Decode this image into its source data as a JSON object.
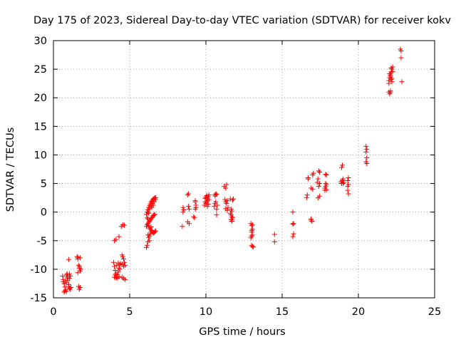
{
  "chart_data": {
    "type": "scatter",
    "title": "Day 175 of 2023, Sidereal Day-to-day VTEC variation (SDTVAR) for receiver kokv",
    "xlabel": "GPS time / hours",
    "ylabel": "SDTVAR / TECUs",
    "xlim": [
      0,
      25
    ],
    "ylim": [
      -15,
      30
    ],
    "xticks": [
      0,
      5,
      10,
      15,
      20,
      25
    ],
    "yticks": [
      -15,
      -10,
      -5,
      0,
      5,
      10,
      15,
      20,
      25,
      30
    ],
    "xtick_labels": [
      "0",
      "5",
      "10",
      "15",
      "20",
      "25"
    ],
    "ytick_labels": [
      "-15",
      "-10",
      "-5",
      "0",
      "5",
      "10",
      "15",
      "20",
      "25",
      "30"
    ],
    "grid": true,
    "marker": "+",
    "color": "#ff0000",
    "series": [
      {
        "name": "SDTVAR",
        "points": [
          [
            0.6,
            -11.2
          ],
          [
            0.65,
            -11.8
          ],
          [
            0.7,
            -12.5
          ],
          [
            0.75,
            -13.1
          ],
          [
            0.8,
            -13.6
          ],
          [
            0.85,
            -11.0
          ],
          [
            0.9,
            -11.5
          ],
          [
            0.95,
            -12.0
          ],
          [
            1.0,
            -12.7
          ],
          [
            1.05,
            -13.3
          ],
          [
            0.7,
            -14.0
          ],
          [
            0.75,
            -13.8
          ],
          [
            0.8,
            -12.0
          ],
          [
            0.85,
            -12.4
          ],
          [
            0.9,
            -10.8
          ],
          [
            0.95,
            -11.2
          ],
          [
            1.0,
            -13.0
          ],
          [
            1.05,
            -11.6
          ],
          [
            0.65,
            -12.2
          ],
          [
            0.85,
            -13.9
          ],
          [
            1.0,
            -8.3
          ],
          [
            1.05,
            -10.8
          ],
          [
            1.1,
            -11.2
          ],
          [
            1.15,
            -13.2
          ],
          [
            1.1,
            -13.5
          ],
          [
            1.55,
            -7.8
          ],
          [
            1.6,
            -8.2
          ],
          [
            1.65,
            -9.3
          ],
          [
            1.7,
            -9.8
          ],
          [
            1.75,
            -10.3
          ],
          [
            1.6,
            -10.6
          ],
          [
            1.65,
            -13.0
          ],
          [
            1.7,
            -13.5
          ],
          [
            1.75,
            -13.2
          ],
          [
            1.6,
            -7.9
          ],
          [
            1.7,
            -9.5
          ],
          [
            1.8,
            -10.0
          ],
          [
            1.75,
            -8.0
          ],
          [
            4.0,
            -5.0
          ],
          [
            4.1,
            -4.8
          ],
          [
            4.3,
            -4.3
          ],
          [
            4.45,
            -2.5
          ],
          [
            4.55,
            -2.2
          ],
          [
            4.65,
            -2.3
          ],
          [
            3.95,
            -8.8
          ],
          [
            4.0,
            -9.5
          ],
          [
            4.05,
            -10.2
          ],
          [
            4.1,
            -10.8
          ],
          [
            4.15,
            -11.3
          ],
          [
            4.2,
            -11.0
          ],
          [
            4.25,
            -10.5
          ],
          [
            4.3,
            -9.8
          ],
          [
            4.35,
            -9.2
          ],
          [
            4.4,
            -9.0
          ],
          [
            4.0,
            -11.4
          ],
          [
            4.1,
            -11.5
          ],
          [
            4.2,
            -11.6
          ],
          [
            4.3,
            -11.3
          ],
          [
            4.15,
            -9.3
          ],
          [
            4.25,
            -8.9
          ],
          [
            4.05,
            -11.0
          ],
          [
            4.35,
            -10.0
          ],
          [
            4.5,
            -7.5
          ],
          [
            4.55,
            -7.8
          ],
          [
            4.6,
            -8.2
          ],
          [
            4.65,
            -8.8
          ],
          [
            4.7,
            -9.3
          ],
          [
            4.5,
            -9.1
          ],
          [
            4.6,
            -9.5
          ],
          [
            4.5,
            -11.4
          ],
          [
            4.6,
            -11.6
          ],
          [
            4.7,
            -11.8
          ],
          [
            6.1,
            -6.2
          ],
          [
            6.15,
            -5.8
          ],
          [
            6.2,
            -5.2
          ],
          [
            6.25,
            -4.5
          ],
          [
            6.3,
            -4.2
          ],
          [
            6.35,
            -3.8
          ],
          [
            6.4,
            -3.5
          ],
          [
            6.45,
            -3.2
          ],
          [
            6.5,
            -3.5
          ],
          [
            6.55,
            -3.7
          ],
          [
            6.6,
            -3.6
          ],
          [
            6.65,
            -3.4
          ],
          [
            6.7,
            -3.3
          ],
          [
            6.1,
            -2.5
          ],
          [
            6.15,
            -2.2
          ],
          [
            6.2,
            -2.0
          ],
          [
            6.25,
            -1.8
          ],
          [
            6.3,
            -1.6
          ],
          [
            6.35,
            -1.4
          ],
          [
            6.4,
            -1.2
          ],
          [
            6.45,
            -1.0
          ],
          [
            6.5,
            -0.8
          ],
          [
            6.55,
            -0.6
          ],
          [
            6.6,
            -0.5
          ],
          [
            6.65,
            -0.4
          ],
          [
            6.1,
            -0.4
          ],
          [
            6.15,
            0.0
          ],
          [
            6.2,
            0.4
          ],
          [
            6.25,
            0.8
          ],
          [
            6.3,
            1.1
          ],
          [
            6.35,
            1.4
          ],
          [
            6.4,
            1.7
          ],
          [
            6.45,
            1.9
          ],
          [
            6.5,
            2.1
          ],
          [
            6.55,
            2.3
          ],
          [
            6.6,
            2.4
          ],
          [
            6.65,
            2.5
          ],
          [
            6.7,
            2.5
          ],
          [
            6.15,
            -1.0
          ],
          [
            6.2,
            -1.2
          ],
          [
            6.25,
            -2.4
          ],
          [
            6.3,
            -2.8
          ],
          [
            6.35,
            -3.0
          ],
          [
            6.4,
            -2.6
          ],
          [
            6.2,
            -4.0
          ],
          [
            6.3,
            -5.0
          ],
          [
            6.2,
            0.0
          ],
          [
            6.3,
            0.6
          ],
          [
            6.4,
            1.0
          ],
          [
            6.5,
            1.5
          ],
          [
            6.6,
            1.8
          ],
          [
            6.7,
            2.2
          ],
          [
            6.25,
            -0.2
          ],
          [
            6.45,
            0.8
          ],
          [
            6.55,
            1.2
          ],
          [
            8.45,
            -2.5
          ],
          [
            8.5,
            0.0
          ],
          [
            8.5,
            0.8
          ],
          [
            8.55,
            0.4
          ],
          [
            8.8,
            -1.7
          ],
          [
            8.85,
            1.0
          ],
          [
            8.8,
            3.0
          ],
          [
            8.85,
            3.2
          ],
          [
            8.9,
            -2.0
          ],
          [
            8.9,
            0.5
          ],
          [
            9.2,
            -0.8
          ],
          [
            9.25,
            -1.0
          ],
          [
            9.3,
            0.5
          ],
          [
            9.3,
            1.8
          ],
          [
            9.3,
            2.0
          ],
          [
            9.35,
            0.8
          ],
          [
            9.35,
            1.2
          ],
          [
            9.9,
            1.2
          ],
          [
            9.95,
            2.4
          ],
          [
            10.0,
            2.6
          ],
          [
            10.05,
            1.8
          ],
          [
            10.1,
            2.0
          ],
          [
            10.15,
            2.7
          ],
          [
            10.2,
            3.0
          ],
          [
            10.0,
            1.5
          ],
          [
            10.1,
            2.3
          ],
          [
            10.05,
            2.9
          ],
          [
            9.95,
            1.8
          ],
          [
            10.15,
            1.4
          ],
          [
            10.2,
            2.2
          ],
          [
            10.1,
            1.0
          ],
          [
            10.6,
            3.0
          ],
          [
            10.65,
            3.2
          ],
          [
            10.7,
            3.1
          ],
          [
            10.55,
            1.0
          ],
          [
            10.6,
            1.5
          ],
          [
            10.65,
            1.8
          ],
          [
            10.7,
            0.5
          ],
          [
            10.75,
            1.2
          ],
          [
            10.7,
            -0.5
          ],
          [
            10.6,
            2.8
          ],
          [
            11.2,
            4.5
          ],
          [
            11.3,
            4.2
          ],
          [
            11.35,
            4.8
          ],
          [
            11.25,
            2.2
          ],
          [
            11.3,
            1.8
          ],
          [
            11.35,
            1.5
          ],
          [
            11.4,
            2.0
          ],
          [
            11.3,
            0.6
          ],
          [
            11.4,
            0.3
          ],
          [
            11.45,
            0.8
          ],
          [
            11.6,
            -0.2
          ],
          [
            11.65,
            -0.5
          ],
          [
            11.7,
            -0.8
          ],
          [
            11.75,
            -1.0
          ],
          [
            11.65,
            -1.3
          ],
          [
            11.7,
            -1.6
          ],
          [
            11.8,
            2.3
          ],
          [
            11.75,
            2.1
          ],
          [
            11.6,
            2.3
          ],
          [
            11.7,
            0.2
          ],
          [
            11.65,
            0.5
          ],
          [
            11.7,
            -1.3
          ],
          [
            12.95,
            -2.0
          ],
          [
            13.0,
            -2.4
          ],
          [
            13.05,
            -3.0
          ],
          [
            13.0,
            -3.5
          ],
          [
            13.05,
            -4.0
          ],
          [
            12.95,
            -4.5
          ],
          [
            13.0,
            -5.8
          ],
          [
            13.05,
            -6.0
          ],
          [
            13.1,
            -6.1
          ],
          [
            13.0,
            -3.2
          ],
          [
            13.05,
            -2.2
          ],
          [
            13.0,
            -4.2
          ],
          [
            14.5,
            -3.9
          ],
          [
            14.5,
            -5.2
          ],
          [
            15.7,
            0.0
          ],
          [
            15.75,
            -2.0
          ],
          [
            15.7,
            -2.1
          ],
          [
            15.75,
            -3.8
          ],
          [
            15.7,
            -4.3
          ],
          [
            16.9,
            -1.2
          ],
          [
            16.95,
            -1.6
          ],
          [
            16.9,
            -1.4
          ],
          [
            16.6,
            2.5
          ],
          [
            16.65,
            3.0
          ],
          [
            16.7,
            5.8
          ],
          [
            16.7,
            6.0
          ],
          [
            16.9,
            4.2
          ],
          [
            17.0,
            6.5
          ],
          [
            17.05,
            6.8
          ],
          [
            17.0,
            4.0
          ],
          [
            17.3,
            5.2
          ],
          [
            17.35,
            5.8
          ],
          [
            17.4,
            7.2
          ],
          [
            17.45,
            7.0
          ],
          [
            17.35,
            2.5
          ],
          [
            17.45,
            2.8
          ],
          [
            17.4,
            4.5
          ],
          [
            17.45,
            5.0
          ],
          [
            17.8,
            4.2
          ],
          [
            17.85,
            4.5
          ],
          [
            17.9,
            6.5
          ],
          [
            17.85,
            6.6
          ],
          [
            17.8,
            3.8
          ],
          [
            17.9,
            4.8
          ],
          [
            17.85,
            5.0
          ],
          [
            17.9,
            3.9
          ],
          [
            18.9,
            7.8
          ],
          [
            18.95,
            8.2
          ],
          [
            18.9,
            5.0
          ],
          [
            18.95,
            5.5
          ],
          [
            18.85,
            5.3
          ],
          [
            19.0,
            5.0
          ],
          [
            19.05,
            5.2
          ],
          [
            19.0,
            5.8
          ],
          [
            19.3,
            5.5
          ],
          [
            19.35,
            6.0
          ],
          [
            19.3,
            3.8
          ],
          [
            19.35,
            3.2
          ],
          [
            19.3,
            4.5
          ],
          [
            19.35,
            4.8
          ],
          [
            20.5,
            11.5
          ],
          [
            20.55,
            11.0
          ],
          [
            20.5,
            10.5
          ],
          [
            20.55,
            9.5
          ],
          [
            20.5,
            8.8
          ],
          [
            20.55,
            8.5
          ],
          [
            22.0,
            21.0
          ],
          [
            22.05,
            20.7
          ],
          [
            22.1,
            21.2
          ],
          [
            22.0,
            23.0
          ],
          [
            22.05,
            23.5
          ],
          [
            22.1,
            24.0
          ],
          [
            22.15,
            24.5
          ],
          [
            22.2,
            25.0
          ],
          [
            22.25,
            25.4
          ],
          [
            22.05,
            24.2
          ],
          [
            22.1,
            23.8
          ],
          [
            22.15,
            23.2
          ],
          [
            22.2,
            22.8
          ],
          [
            22.25,
            24.6
          ],
          [
            22.0,
            22.5
          ],
          [
            22.15,
            25.2
          ],
          [
            22.1,
            21.0
          ],
          [
            22.2,
            23.4
          ],
          [
            22.75,
            28.5
          ],
          [
            22.8,
            28.2
          ],
          [
            22.8,
            27.0
          ],
          [
            22.85,
            22.8
          ]
        ]
      }
    ]
  }
}
